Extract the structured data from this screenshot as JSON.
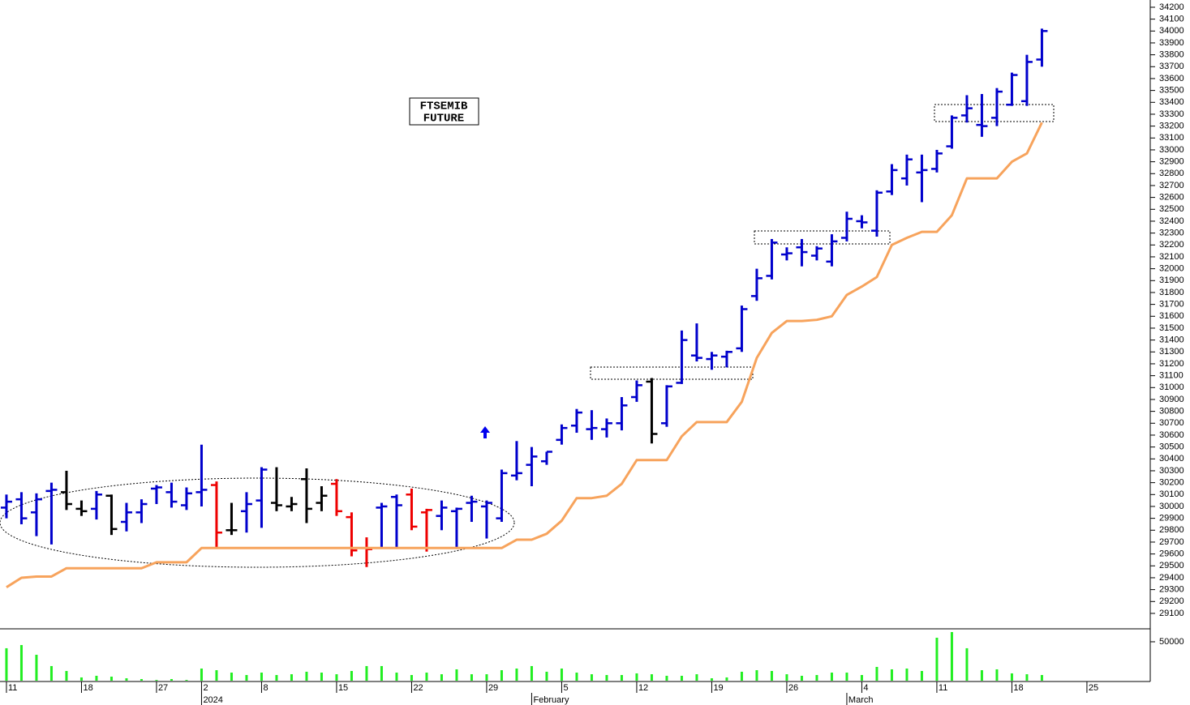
{
  "chart_data": [
    {
      "type": "ohlc",
      "annotation": [
        "FTSEMIB",
        "FUTURE"
      ],
      "x": [
        0,
        1,
        2,
        3,
        4,
        5,
        6,
        7,
        8,
        9,
        10,
        11,
        12,
        13,
        14,
        15,
        16,
        17,
        18,
        19,
        20,
        21,
        22,
        23,
        24,
        25,
        26,
        27,
        28,
        29,
        30,
        31,
        32,
        33,
        34,
        35,
        36,
        37,
        38,
        39,
        40,
        41,
        42,
        43,
        44,
        45,
        46,
        47,
        48,
        49,
        50,
        51,
        52,
        53,
        54,
        55,
        56,
        57,
        58,
        59,
        60,
        61,
        62,
        63,
        64,
        65,
        66,
        67,
        68,
        69
      ],
      "open": [
        29990,
        30060,
        29950,
        30130,
        30120,
        29980,
        29980,
        30090,
        29870,
        29950,
        30150,
        30120,
        30010,
        30120,
        30180,
        29800,
        29960,
        30050,
        30030,
        30000,
        30230,
        30030,
        30190,
        29910,
        29650,
        29990,
        30080,
        30100,
        29950,
        29920,
        29960,
        30030,
        30000,
        29900,
        30260,
        30350,
        30380,
        30560,
        30680,
        30650,
        30650,
        30700,
        30920,
        31050,
        30700,
        31040,
        31270,
        31240,
        31260,
        31330,
        31770,
        31940,
        32120,
        32180,
        32110,
        32060,
        32260,
        32400,
        32320,
        32650,
        32760,
        32810,
        32840,
        33030,
        33290,
        33210,
        33270,
        33380,
        33410,
        33760
      ],
      "high": [
        30100,
        30120,
        30110,
        30200,
        30300,
        30050,
        30130,
        30100,
        30030,
        30060,
        30180,
        30200,
        30160,
        30520,
        30210,
        30030,
        30120,
        30330,
        30330,
        30080,
        30320,
        30170,
        30230,
        29950,
        29740,
        30030,
        30100,
        30150,
        29980,
        30050,
        29990,
        30090,
        30050,
        30310,
        30550,
        30500,
        30460,
        30690,
        30820,
        30810,
        30740,
        30920,
        31060,
        31080,
        31020,
        31480,
        31540,
        31300,
        31310,
        31690,
        32000,
        32250,
        32180,
        32250,
        32190,
        32290,
        32480,
        32450,
        32660,
        32880,
        32960,
        32960,
        33000,
        33290,
        33460,
        33470,
        33520,
        33650,
        33800,
        34020
      ],
      "low": [
        29900,
        29850,
        29750,
        29680,
        29970,
        29920,
        29890,
        29760,
        29790,
        29860,
        30020,
        29990,
        29970,
        30000,
        29650,
        29760,
        29780,
        29820,
        29960,
        29960,
        29860,
        29960,
        29920,
        29580,
        29490,
        29650,
        29650,
        29800,
        29620,
        29800,
        29650,
        29870,
        29730,
        29870,
        30220,
        30170,
        30350,
        30520,
        30620,
        30560,
        30580,
        30640,
        30880,
        30530,
        30670,
        31030,
        31220,
        31150,
        31170,
        31300,
        31730,
        31910,
        32070,
        32020,
        32070,
        32020,
        32230,
        32340,
        32270,
        32620,
        32700,
        32560,
        32810,
        33010,
        33230,
        33110,
        33200,
        33370,
        33370,
        33700
      ],
      "close": [
        30040,
        29900,
        30060,
        30140,
        30020,
        29960,
        30100,
        29810,
        29950,
        30020,
        30160,
        30040,
        30110,
        30140,
        29780,
        29800,
        30020,
        30310,
        30010,
        30020,
        29980,
        30090,
        29960,
        29630,
        29640,
        30000,
        30010,
        29830,
        29970,
        29990,
        29980,
        30040,
        30030,
        30280,
        30280,
        30420,
        30460,
        30660,
        30790,
        30660,
        30700,
        30850,
        31020,
        30610,
        31010,
        31400,
        31250,
        31270,
        31300,
        31660,
        31920,
        32220,
        32130,
        32140,
        32170,
        32230,
        32420,
        32390,
        32640,
        32830,
        32920,
        32830,
        32970,
        33270,
        33350,
        33200,
        33490,
        33630,
        33740,
        34000
      ],
      "bar_colors": [
        "#0000cc",
        "#0000cc",
        "#0000cc",
        "#0000cc",
        "#000000",
        "#000000",
        "#0000cc",
        "#000000",
        "#0000cc",
        "#0000cc",
        "#0000cc",
        "#0000cc",
        "#0000cc",
        "#0000cc",
        "#ee0000",
        "#000000",
        "#0000cc",
        "#0000cc",
        "#000000",
        "#000000",
        "#000000",
        "#000000",
        "#ee0000",
        "#ee0000",
        "#ee0000",
        "#0000cc",
        "#0000cc",
        "#ee0000",
        "#ee0000",
        "#0000cc",
        "#0000cc",
        "#0000cc",
        "#0000cc",
        "#0000cc",
        "#0000cc",
        "#0000cc",
        "#0000cc",
        "#0000cc",
        "#0000cc",
        "#0000cc",
        "#0000cc",
        "#0000cc",
        "#0000cc",
        "#000000",
        "#0000cc",
        "#0000cc",
        "#0000cc",
        "#0000cc",
        "#0000cc",
        "#0000cc",
        "#0000cc",
        "#0000cc",
        "#0000cc",
        "#0000cc",
        "#0000cc",
        "#0000cc",
        "#0000cc",
        "#0000cc",
        "#0000cc",
        "#0000cc",
        "#0000cc",
        "#0000cc",
        "#0000cc",
        "#0000cc",
        "#0000cc",
        "#0000cc",
        "#0000cc",
        "#0000cc",
        "#0000cc",
        "#0000cc"
      ],
      "series": [
        {
          "color": "#f7a35c",
          "values": [
            29320,
            29400,
            29410,
            29410,
            29480,
            29480,
            29480,
            29480,
            29480,
            29480,
            29530,
            29530,
            29530,
            29650,
            29650,
            29650,
            29650,
            29650,
            29650,
            29650,
            29650,
            29650,
            29650,
            29650,
            29650,
            29650,
            29650,
            29650,
            29650,
            29650,
            29650,
            29650,
            29650,
            29650,
            29720,
            29720,
            29770,
            29880,
            30070,
            30070,
            30090,
            30190,
            30390,
            30390,
            30390,
            30590,
            30710,
            30710,
            30710,
            30880,
            31250,
            31460,
            31560,
            31560,
            31570,
            31600,
            31780,
            31850,
            31930,
            32200,
            32260,
            32310,
            32310,
            32450,
            32760,
            32760,
            32760,
            32900,
            32970,
            33230
          ]
        }
      ],
      "xlim": [
        -0.43,
        76.22
      ],
      "ylim": [
        28977,
        34261
      ],
      "yticks": [
        29100,
        29200,
        29300,
        29400,
        29500,
        29600,
        29700,
        29800,
        29900,
        30000,
        30100,
        30200,
        30300,
        30400,
        30500,
        30600,
        30700,
        30800,
        30900,
        31000,
        31100,
        31200,
        31300,
        31400,
        31500,
        31600,
        31700,
        31800,
        31900,
        32000,
        32100,
        32200,
        32300,
        32400,
        32500,
        32600,
        32700,
        32800,
        32900,
        33000,
        33100,
        33200,
        33300,
        33400,
        33500,
        33600,
        33700,
        33800,
        33900,
        34000,
        34100,
        34200
      ]
    },
    {
      "type": "bar",
      "x": [
        0,
        1,
        2,
        3,
        4,
        5,
        6,
        7,
        8,
        9,
        10,
        11,
        12,
        13,
        14,
        15,
        16,
        17,
        18,
        19,
        20,
        21,
        22,
        23,
        24,
        25,
        26,
        27,
        28,
        29,
        30,
        31,
        32,
        33,
        34,
        35,
        36,
        37,
        38,
        39,
        40,
        41,
        42,
        43,
        44,
        45,
        46,
        47,
        48,
        49,
        50,
        51,
        52,
        53,
        54,
        55,
        56,
        57,
        58,
        59,
        60,
        61,
        62,
        63,
        64,
        65,
        66,
        67,
        68,
        69
      ],
      "values": [
        41700,
        45800,
        33300,
        18800,
        12500,
        4200,
        6300,
        5200,
        3100,
        2100,
        1000,
        2100,
        1000,
        15600,
        13500,
        10400,
        7300,
        10400,
        7300,
        8300,
        11500,
        10400,
        8300,
        12500,
        18800,
        18800,
        10400,
        7300,
        10400,
        8300,
        14600,
        8300,
        8300,
        13500,
        15600,
        18800,
        11500,
        15600,
        10400,
        8300,
        7300,
        7300,
        9400,
        8300,
        6300,
        6300,
        8300,
        3100,
        4200,
        11500,
        13500,
        12500,
        8300,
        6300,
        7300,
        10400,
        10400,
        7300,
        17700,
        14600,
        15600,
        12500,
        55200,
        62500,
        41700,
        13500,
        14600,
        9400,
        8300,
        7300
      ],
      "color": "#22ee22",
      "xlim": [
        -0.43,
        76.22
      ],
      "ylim": [
        0,
        65600
      ],
      "yticks": [
        50000
      ],
      "xticks": [
        {
          "value": 0,
          "label": "11"
        },
        {
          "value": 5,
          "label": "18"
        },
        {
          "value": 10,
          "label": "27"
        },
        {
          "value": 13,
          "label": "2"
        },
        {
          "value": 17,
          "label": "8"
        },
        {
          "value": 22,
          "label": "15"
        },
        {
          "value": 27,
          "label": "22"
        },
        {
          "value": 32,
          "label": "29"
        },
        {
          "value": 37,
          "label": "5"
        },
        {
          "value": 42,
          "label": "12"
        },
        {
          "value": 47,
          "label": "19"
        },
        {
          "value": 52,
          "label": "26"
        },
        {
          "value": 57,
          "label": "4"
        },
        {
          "value": 62,
          "label": "11"
        },
        {
          "value": 67,
          "label": "18"
        },
        {
          "value": 72,
          "label": "25"
        }
      ],
      "period_ticks": [
        {
          "value": 13,
          "label": "2024"
        },
        {
          "value": 35,
          "label": "February"
        },
        {
          "value": 56,
          "label": "March"
        }
      ]
    }
  ]
}
